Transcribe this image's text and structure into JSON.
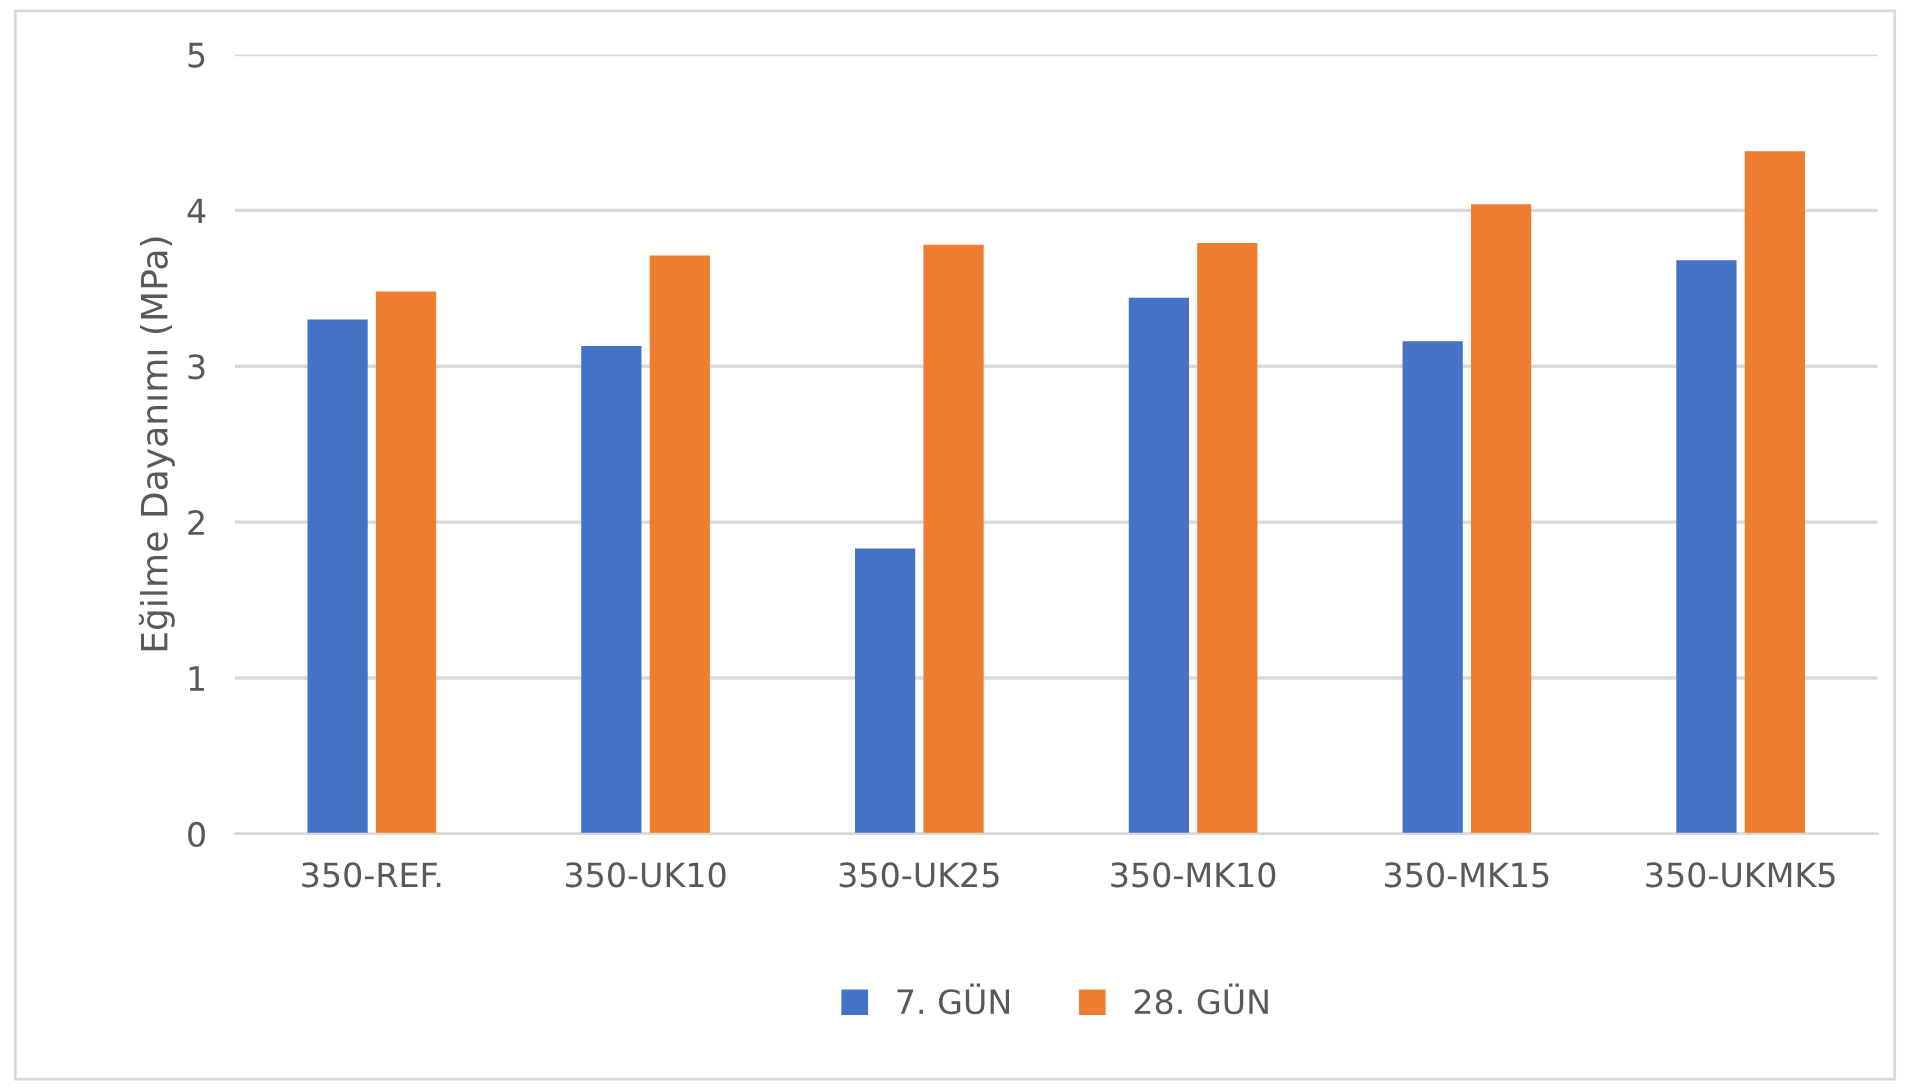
{
  "chart_data": {
    "type": "bar",
    "ylabel": "Eğilme Dayanımı (MPa)",
    "categories": [
      "350-REF.",
      "350-UK10",
      "350-UK25",
      "350-MK10",
      "350-MK15",
      "350-UKMK5"
    ],
    "series": [
      {
        "name": "7. GÜN",
        "color": "#4472c4",
        "values": [
          3.3,
          3.13,
          1.83,
          3.44,
          3.16,
          3.68
        ]
      },
      {
        "name": "28. GÜN",
        "color": "#ed7d31",
        "values": [
          3.48,
          3.71,
          3.78,
          3.79,
          4.04,
          4.38
        ]
      }
    ],
    "ylim": [
      0,
      5
    ],
    "yticks": [
      0,
      1,
      2,
      3,
      4,
      5
    ],
    "grid": "y",
    "legend": "bottom"
  }
}
